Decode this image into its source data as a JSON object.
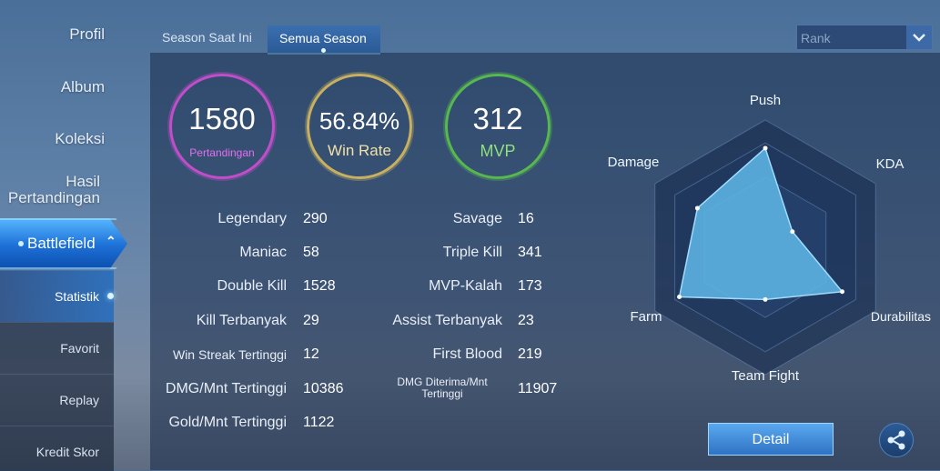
{
  "sidebar": {
    "top_items": [
      "Profil",
      "Album",
      "Koleksi",
      "Hasil\nPertandingan"
    ],
    "battlefield": "Battlefield",
    "sub_items": [
      "Statistik",
      "Favorit",
      "Replay",
      "Kredit Skor"
    ]
  },
  "tabs": {
    "current": "Season Saat Ini",
    "all": "Semua Season"
  },
  "rank_select": {
    "value": "Rank"
  },
  "summary": {
    "matches": {
      "value": "1580",
      "label": "Pertandingan"
    },
    "win_rate": {
      "value": "56.84%",
      "label": "Win Rate"
    },
    "mvp": {
      "value": "312",
      "label": "MVP"
    }
  },
  "stats_left": [
    {
      "label": "Legendary",
      "value": "290"
    },
    {
      "label": "Maniac",
      "value": "58"
    },
    {
      "label": "Double Kill",
      "value": "1528"
    },
    {
      "label": "Kill Terbanyak",
      "value": "29"
    },
    {
      "label": "Win Streak Tertinggi",
      "value": "12"
    },
    {
      "label": "DMG/Mnt Tertinggi",
      "value": "10386"
    },
    {
      "label": "Gold/Mnt Tertinggi",
      "value": "1122"
    }
  ],
  "stats_right": [
    {
      "label": "Savage",
      "value": "16"
    },
    {
      "label": "Triple Kill",
      "value": "341"
    },
    {
      "label": "MVP-Kalah",
      "value": "173"
    },
    {
      "label": "Assist Terbanyak",
      "value": "23"
    },
    {
      "label": "First Blood",
      "value": "219"
    },
    {
      "label": "DMG Diterima/Mnt\nTertinggi",
      "value": "11907"
    }
  ],
  "radar": {
    "axes": [
      "Push",
      "KDA",
      "Durabilitas",
      "Team Fight",
      "Farm",
      "Damage"
    ],
    "levels": [
      0.95,
      0.3,
      0.85,
      0.5,
      0.95,
      0.75
    ]
  },
  "buttons": {
    "detail": "Detail",
    "share_icon": "share-icon"
  },
  "colors": {
    "matches": "#c04ec9",
    "win_rate": "#c7b060",
    "mvp": "#56b84e",
    "radar_fill": "#5fb8ea"
  }
}
